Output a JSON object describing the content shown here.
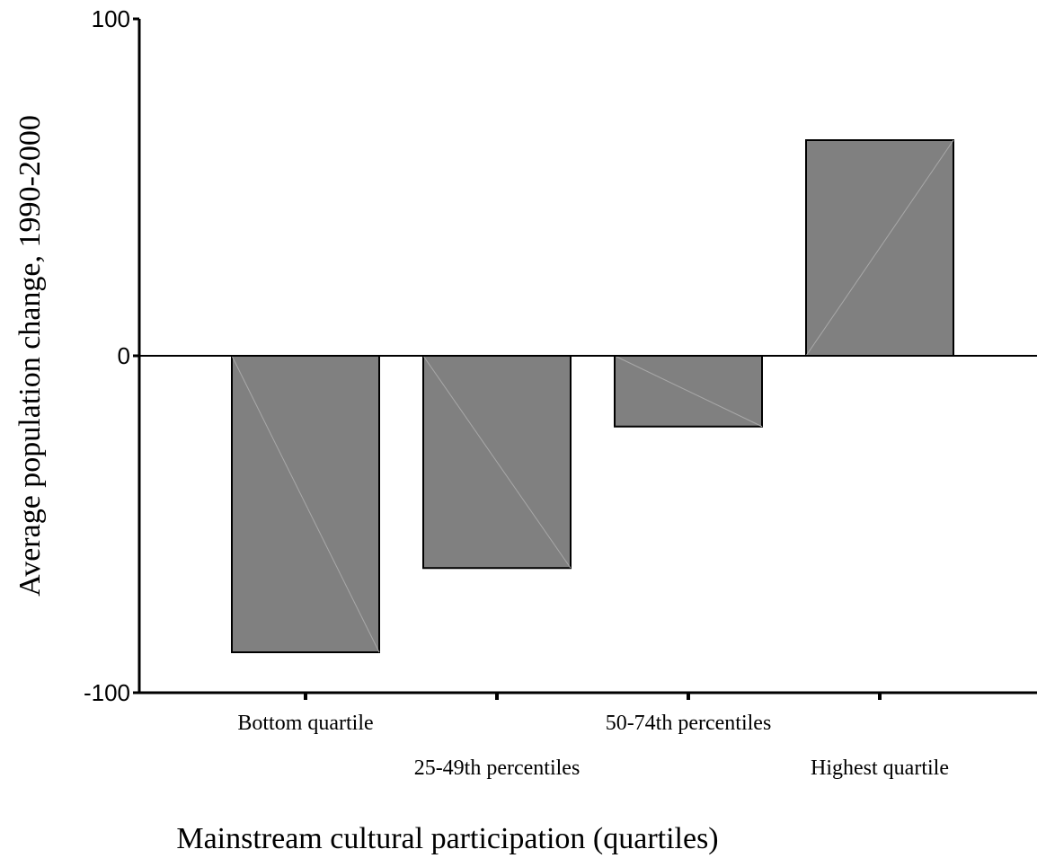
{
  "chart_data": {
    "type": "bar",
    "title": "",
    "xlabel": "Mainstream cultural participation (quartiles)",
    "ylabel": "Average population change, 1990-2000",
    "categories": [
      "Bottom quartile",
      "25-49th percentiles",
      "50-74th percentiles",
      "Highest quartile"
    ],
    "values": [
      -88,
      -63,
      -21,
      64
    ],
    "ylim": [
      -100,
      100
    ],
    "yticks": [
      "100",
      "0",
      "-100"
    ],
    "bar_color": "#808080",
    "grid": false,
    "legend": "none"
  }
}
